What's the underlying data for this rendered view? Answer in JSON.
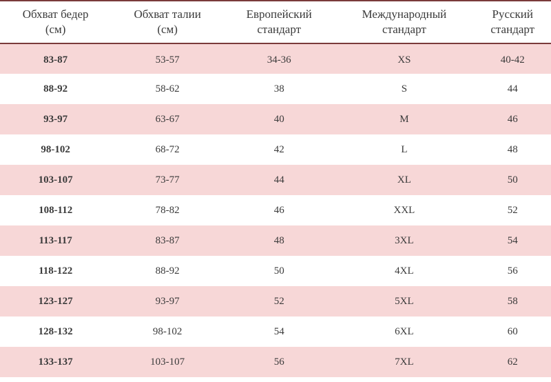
{
  "table": {
    "background_color_even": "#f7d7d7",
    "background_color_odd": "#ffffff",
    "border_color": "#7a3a3a",
    "text_color": "#3a3a3a",
    "header_fontsize": 17,
    "cell_fontsize": 15,
    "columns": [
      "Обхват бедер (см)",
      "Обхват талии (см)",
      "Европейский стандарт",
      "Международный стандарт",
      "Русский стандарт"
    ],
    "col_line1": [
      "Обхват бедер",
      "Обхват талии",
      "Европейский",
      "Международный",
      "Русский"
    ],
    "col_line2": [
      "(см)",
      "(см)",
      "стандарт",
      "стандарт",
      "стандарт"
    ],
    "rows": [
      [
        "83-87",
        "53-57",
        "34-36",
        "XS",
        "40-42"
      ],
      [
        "88-92",
        "58-62",
        "38",
        "S",
        "44"
      ],
      [
        "93-97",
        "63-67",
        "40",
        "M",
        "46"
      ],
      [
        "98-102",
        "68-72",
        "42",
        "L",
        "48"
      ],
      [
        "103-107",
        "73-77",
        "44",
        "XL",
        "50"
      ],
      [
        "108-112",
        "78-82",
        "46",
        "XXL",
        "52"
      ],
      [
        "113-117",
        "83-87",
        "48",
        "3XL",
        "54"
      ],
      [
        "118-122",
        "88-92",
        "50",
        "4XL",
        "56"
      ],
      [
        "123-127",
        "93-97",
        "52",
        "5XL",
        "58"
      ],
      [
        "128-132",
        "98-102",
        "54",
        "6XL",
        "60"
      ],
      [
        "133-137",
        "103-107",
        "56",
        "7XL",
        "62"
      ]
    ]
  }
}
